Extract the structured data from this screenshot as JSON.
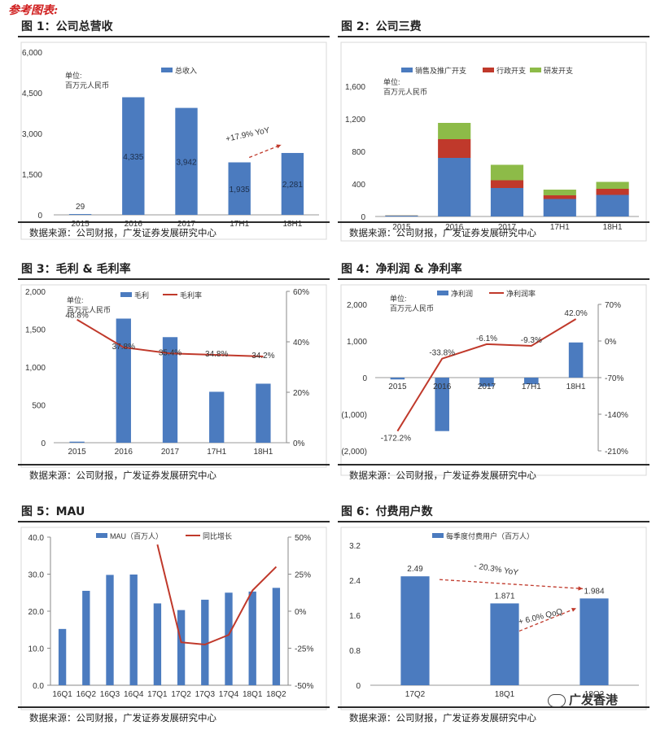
{
  "page": {
    "title": "参考图表:"
  },
  "source_text": "数据来源：公司财报，广发证券发展研究中心",
  "watermark": "广发香港",
  "colors": {
    "bar": "#4b7bbf",
    "line": "#c0392b",
    "red": "#c0392b",
    "green": "#8dbb48",
    "arrow": "#c0392b"
  },
  "chart_data": [
    {
      "id": "fig1",
      "type": "bar",
      "figure_title": "图 1：公司总营收",
      "unit_label": [
        "单位:",
        "百万元人民币"
      ],
      "legend": [
        "总收入"
      ],
      "categories": [
        "2015",
        "2016",
        "2017",
        "17H1",
        "18H1"
      ],
      "values": [
        29,
        4335,
        3942,
        1935,
        2281
      ],
      "value_labels": [
        "29",
        "4,335",
        "3,942",
        "1,935",
        "2,281"
      ],
      "ylim": [
        0,
        6000
      ],
      "yticks": [
        0,
        1500,
        3000,
        4500,
        6000
      ],
      "ytick_labels": [
        "0",
        "1,500",
        "3,000",
        "4,500",
        "6,000"
      ],
      "annotation": "+17.9% YoY"
    },
    {
      "id": "fig2",
      "type": "bar",
      "stacked": true,
      "figure_title": "图 2：公司三费",
      "unit_label": [
        "单位:",
        "百万元人民币"
      ],
      "categories": [
        "2015",
        "2016",
        "2017",
        "17H1",
        "18H1"
      ],
      "series": [
        {
          "name": "销售及推广开支",
          "values": [
            10,
            720,
            350,
            215,
            265
          ]
        },
        {
          "name": "行政开支",
          "values": [
            3,
            230,
            95,
            45,
            75
          ]
        },
        {
          "name": "研发开支",
          "values": [
            2,
            200,
            190,
            70,
            85
          ]
        }
      ],
      "ylim": [
        0,
        1600
      ],
      "yticks": [
        0,
        400,
        800,
        1200,
        1600
      ],
      "ytick_labels": [
        "0",
        "400",
        "800",
        "1,200",
        "1,600"
      ]
    },
    {
      "id": "fig3",
      "type": "bar",
      "figure_title": "图 3：毛利 & 毛利率",
      "unit_label": [
        "单位:",
        "百万元人民币"
      ],
      "legend": [
        "毛利",
        "毛利率"
      ],
      "categories": [
        "2015",
        "2016",
        "2017",
        "17H1",
        "18H1"
      ],
      "values": [
        14,
        1640,
        1395,
        673,
        780
      ],
      "line_values": [
        48.8,
        37.8,
        35.4,
        34.8,
        34.2
      ],
      "line_labels": [
        "48.8%",
        "37.8%",
        "35.4%",
        "34.8%",
        "34.2%"
      ],
      "ylim": [
        0,
        2000
      ],
      "yticks": [
        0,
        500,
        1000,
        1500,
        2000
      ],
      "ytick_labels": [
        "0",
        "500",
        "1,000",
        "1,500",
        "2,000"
      ],
      "y2lim": [
        0,
        60
      ],
      "y2ticks": [
        0,
        20,
        40,
        60
      ],
      "y2tick_labels": [
        "0%",
        "20%",
        "40%",
        "60%"
      ]
    },
    {
      "id": "fig4",
      "type": "bar",
      "figure_title": "图 4：净利润 & 净利率",
      "unit_label": [
        "单位:",
        "百万元人民币"
      ],
      "legend": [
        "净利润",
        "净利润率"
      ],
      "categories": [
        "2015",
        "2016",
        "2017",
        "17H1",
        "18H1"
      ],
      "values": [
        -50,
        -1460,
        -240,
        -180,
        960
      ],
      "line_values": [
        -172.2,
        -33.8,
        -6.1,
        -9.3,
        42.0
      ],
      "line_labels": [
        "-172.2%",
        "-33.8%",
        "-6.1%",
        "-9.3%",
        "42.0%"
      ],
      "ylim": [
        -2000,
        2000
      ],
      "yticks": [
        -2000,
        -1000,
        0,
        1000,
        2000
      ],
      "ytick_labels": [
        "(2,000)",
        "(1,000)",
        "0",
        "1,000",
        "2,000"
      ],
      "y2lim": [
        -210,
        70
      ],
      "y2ticks": [
        -210,
        -140,
        -70,
        0,
        70
      ],
      "y2tick_labels": [
        "-210%",
        "-140%",
        "-70%",
        "0%",
        "70%"
      ]
    },
    {
      "id": "fig5",
      "type": "bar",
      "figure_title": "图 5：MAU",
      "legend": [
        "MAU（百万人）",
        "同比增长"
      ],
      "categories": [
        "16Q1",
        "16Q2",
        "16Q3",
        "16Q4",
        "17Q1",
        "17Q2",
        "17Q3",
        "17Q4",
        "18Q1",
        "18Q2"
      ],
      "values": [
        15.2,
        25.5,
        29.8,
        29.9,
        22.1,
        20.3,
        23.1,
        25.0,
        25.3,
        26.3
      ],
      "line_values": [
        null,
        null,
        null,
        null,
        45.0,
        -21.0,
        -22.5,
        -16.0,
        14.0,
        30.0
      ],
      "ylim": [
        0,
        40
      ],
      "yticks": [
        0,
        10,
        20,
        30,
        40
      ],
      "ytick_labels": [
        "0.0",
        "10.0",
        "20.0",
        "30.0",
        "40.0"
      ],
      "y2lim": [
        -50,
        50
      ],
      "y2ticks": [
        -50,
        -25,
        0,
        25,
        50
      ],
      "y2tick_labels": [
        "-50%",
        "-25%",
        "0%",
        "25%",
        "50%"
      ]
    },
    {
      "id": "fig6",
      "type": "bar",
      "figure_title": "图 6：付费用户数",
      "legend": [
        "每季度付费用户（百万人）"
      ],
      "categories": [
        "17Q2",
        "18Q1",
        "18Q2"
      ],
      "values": [
        2.49,
        1.871,
        1.984
      ],
      "value_labels": [
        "2.49",
        "1.871",
        "1.984"
      ],
      "ylim": [
        0,
        3.2
      ],
      "yticks": [
        0,
        0.8,
        1.6,
        2.4,
        3.2
      ],
      "ytick_labels": [
        "0",
        "0.8",
        "1.6",
        "2.4",
        "3.2"
      ],
      "annotations": [
        "- 20.3% YoY",
        "+ 6.0% QoQ"
      ]
    }
  ]
}
